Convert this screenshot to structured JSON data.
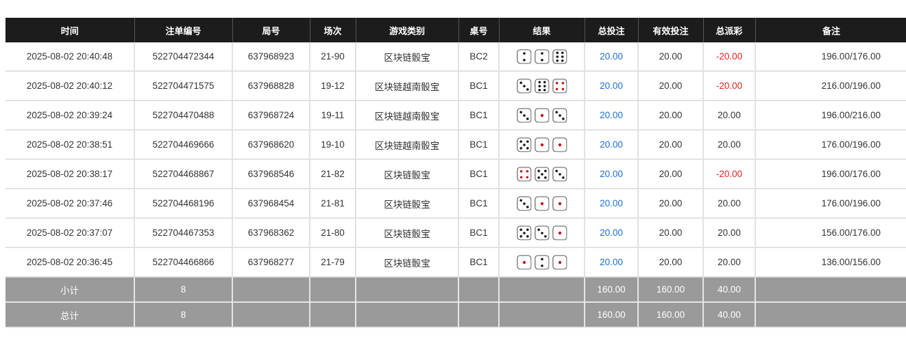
{
  "headers": [
    "时间",
    "注单编号",
    "局号",
    "场次",
    "游戏类别",
    "桌号",
    "结果",
    "总投注",
    "有效投注",
    "总派彩",
    "备注"
  ],
  "rows": [
    {
      "time": "2025-08-02 20:40:48",
      "bet_id": "522704472344",
      "round": "637968923",
      "session": "21-90",
      "game": "区块链骰宝",
      "table": "BC2",
      "dice": [
        2,
        2,
        6
      ],
      "total_bet": "20.00",
      "valid_bet": "20.00",
      "payout": "-20.00",
      "note": "196.00/176.00"
    },
    {
      "time": "2025-08-02 20:40:12",
      "bet_id": "522704471575",
      "round": "637968828",
      "session": "19-12",
      "game": "区块链越南骰宝",
      "table": "BC1",
      "dice": [
        3,
        6,
        4
      ],
      "total_bet": "20.00",
      "valid_bet": "20.00",
      "payout": "-20.00",
      "note": "216.00/196.00"
    },
    {
      "time": "2025-08-02 20:39:24",
      "bet_id": "522704470488",
      "round": "637968724",
      "session": "19-11",
      "game": "区块链越南骰宝",
      "table": "BC1",
      "dice": [
        3,
        1,
        3
      ],
      "total_bet": "20.00",
      "valid_bet": "20.00",
      "payout": "20.00",
      "note": "196.00/216.00"
    },
    {
      "time": "2025-08-02 20:38:51",
      "bet_id": "522704469666",
      "round": "637968620",
      "session": "19-10",
      "game": "区块链越南骰宝",
      "table": "BC1",
      "dice": [
        5,
        1,
        1
      ],
      "total_bet": "20.00",
      "valid_bet": "20.00",
      "payout": "20.00",
      "note": "176.00/196.00"
    },
    {
      "time": "2025-08-02 20:38:17",
      "bet_id": "522704468867",
      "round": "637968546",
      "session": "21-82",
      "game": "区块链骰宝",
      "table": "BC1",
      "dice": [
        4,
        5,
        3
      ],
      "total_bet": "20.00",
      "valid_bet": "20.00",
      "payout": "-20.00",
      "note": "196.00/176.00"
    },
    {
      "time": "2025-08-02 20:37:46",
      "bet_id": "522704468196",
      "round": "637968454",
      "session": "21-81",
      "game": "区块链骰宝",
      "table": "BC1",
      "dice": [
        3,
        1,
        1
      ],
      "total_bet": "20.00",
      "valid_bet": "20.00",
      "payout": "20.00",
      "note": "176.00/196.00"
    },
    {
      "time": "2025-08-02 20:37:07",
      "bet_id": "522704467353",
      "round": "637968362",
      "session": "21-80",
      "game": "区块链骰宝",
      "table": "BC1",
      "dice": [
        5,
        3,
        1
      ],
      "total_bet": "20.00",
      "valid_bet": "20.00",
      "payout": "20.00",
      "note": "156.00/176.00"
    },
    {
      "time": "2025-08-02 20:36:45",
      "bet_id": "522704466866",
      "round": "637968277",
      "session": "21-79",
      "game": "区块链骰宝",
      "table": "BC1",
      "dice": [
        1,
        2,
        1
      ],
      "total_bet": "20.00",
      "valid_bet": "20.00",
      "payout": "20.00",
      "note": "136.00/156.00"
    }
  ],
  "subtotal": {
    "label": "小计",
    "count": "8",
    "total_bet": "160.00",
    "valid_bet": "160.00",
    "payout": "40.00"
  },
  "total": {
    "label": "总计",
    "count": "8",
    "total_bet": "160.00",
    "valid_bet": "160.00",
    "payout": "40.00"
  },
  "colors": {
    "header_bg": "#1c1c1c",
    "positive": "#1a6fd1",
    "negative": "#e0201b",
    "summary_bg": "#9a9a9a",
    "pip_red": "#c0181b"
  }
}
